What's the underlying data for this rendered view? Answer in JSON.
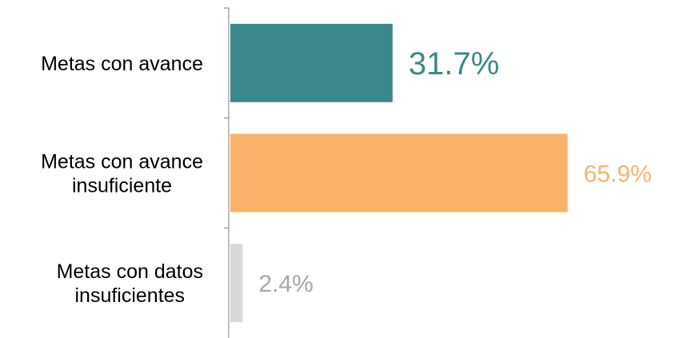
{
  "chart_data": {
    "type": "bar",
    "orientation": "horizontal",
    "categories": [
      [
        "Metas con avance"
      ],
      [
        "Metas con avance",
        "insuficiente"
      ],
      [
        "Metas con datos",
        "insuficientes"
      ]
    ],
    "values": [
      31.7,
      65.9,
      2.4
    ],
    "value_labels": [
      "31.7%",
      "65.9%",
      "2.4%"
    ],
    "colors": [
      "#3d888a",
      "#f9b26a",
      "#d9d9d9"
    ],
    "label_colors": [
      "#3d888a",
      "#f9b26a",
      "#a6a6a6"
    ],
    "title": "",
    "xlabel": "",
    "ylabel": "",
    "xlim": [
      0,
      100
    ],
    "grid": false,
    "legend": "none"
  }
}
